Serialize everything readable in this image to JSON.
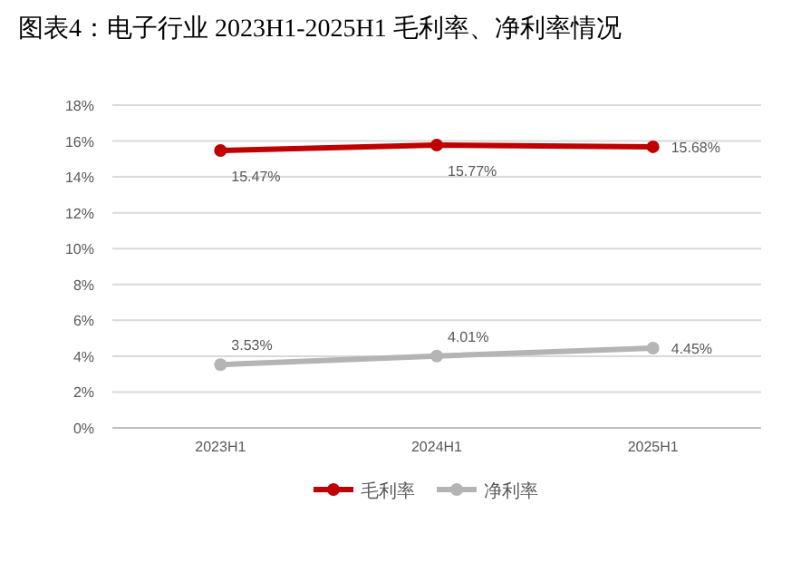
{
  "chart_data": {
    "type": "line",
    "title": "图表4：电子行业 2023H1-2025H1 毛利率、净利率情况",
    "categories": [
      "2023H1",
      "2024H1",
      "2025H1"
    ],
    "series": [
      {
        "name": "毛利率",
        "color": "#c00000",
        "values": [
          15.47,
          15.77,
          15.68
        ],
        "value_labels": [
          "15.47%",
          "15.77%",
          "15.68%"
        ]
      },
      {
        "name": "净利率",
        "color": "#b4b4b4",
        "values": [
          3.53,
          4.01,
          4.45
        ],
        "value_labels": [
          "3.53%",
          "4.01%",
          "4.45%"
        ]
      }
    ],
    "ylim": [
      0,
      18
    ],
    "yticks": [
      {
        "value": 0,
        "label": "0%"
      },
      {
        "value": 2,
        "label": "2%"
      },
      {
        "value": 4,
        "label": "4%"
      },
      {
        "value": 6,
        "label": "6%"
      },
      {
        "value": 8,
        "label": "8%"
      },
      {
        "value": 10,
        "label": "10%"
      },
      {
        "value": 12,
        "label": "12%"
      },
      {
        "value": 14,
        "label": "14%"
      },
      {
        "value": 16,
        "label": "16%"
      },
      {
        "value": 18,
        "label": "18%"
      }
    ],
    "grid": "y",
    "legend": "bottom",
    "marker": "circle",
    "line_style": "solid"
  }
}
